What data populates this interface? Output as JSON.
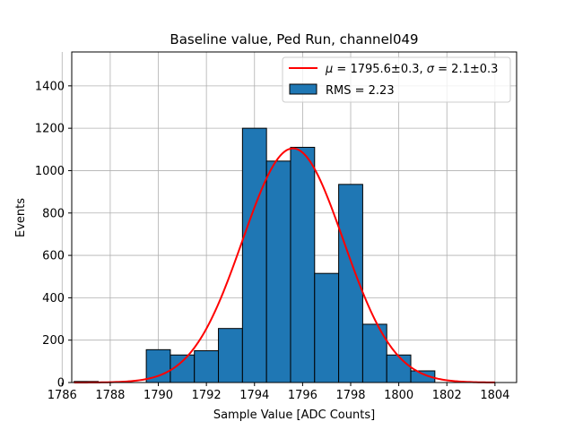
{
  "chart_data": {
    "type": "bar",
    "title": "Baseline value, Ped Run, channel049",
    "xlabel": "Sample Value [ADC Counts]",
    "ylabel": "Events",
    "xlim": [
      1786.4,
      1804.9
    ],
    "ylim": [
      0,
      1560
    ],
    "x_ticks": [
      1786,
      1788,
      1790,
      1792,
      1794,
      1796,
      1798,
      1800,
      1802,
      1804
    ],
    "y_ticks": [
      0,
      200,
      400,
      600,
      800,
      1000,
      1200,
      1400
    ],
    "grid": true,
    "legend_position": "top-right",
    "bin_edges": [
      1786.5,
      1787.5,
      1788.5,
      1789.5,
      1790.5,
      1791.5,
      1792.5,
      1793.5,
      1794.5,
      1795.5,
      1796.5,
      1797.5,
      1798.5,
      1799.5,
      1800.5,
      1801.5,
      1802.5
    ],
    "counts": [
      5,
      0,
      0,
      155,
      130,
      150,
      255,
      1200,
      1045,
      1110,
      515,
      935,
      275,
      130,
      55,
      0
    ],
    "fit": {
      "mu": 1795.6,
      "sigma": 2.1,
      "amplitude": 1105,
      "x_range": [
        1786.5,
        1804.0
      ]
    },
    "series": [
      {
        "name": "$\\mu = 1795.6 \\pm 0.3$, $\\sigma = 2.1 \\pm 0.3$",
        "type": "line",
        "color": "#ff0000"
      },
      {
        "name": "RMS = 2.23",
        "type": "bar",
        "color": "#1f77b4"
      }
    ],
    "legend_fit_parts": [
      "μ",
      " = 1795.6±0.3, ",
      "σ",
      " = 2.1±0.3"
    ],
    "legend_hist_label": "RMS = 2.23"
  }
}
